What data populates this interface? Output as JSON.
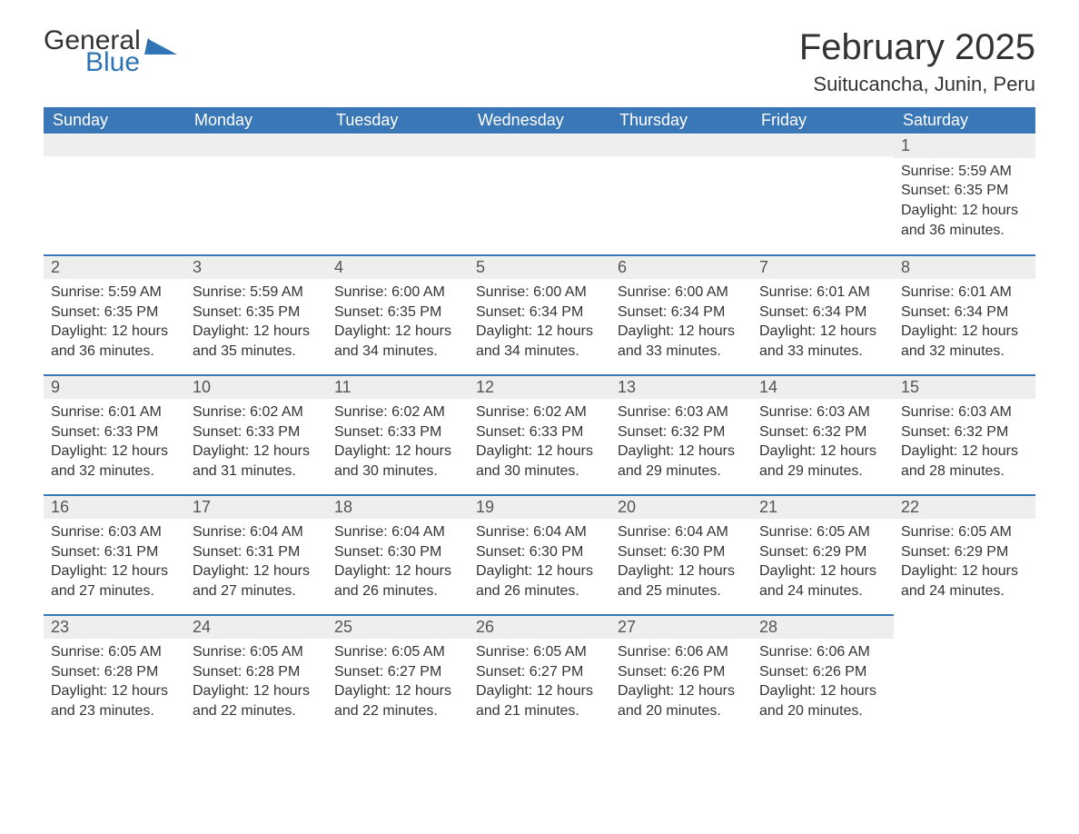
{
  "brand": {
    "word1": "General",
    "word2": "Blue",
    "word1_color": "#333333",
    "word2_color": "#2f74b5",
    "icon_color": "#2f74b5"
  },
  "header": {
    "title": "February 2025",
    "location": "Suitucancha, Junin, Peru"
  },
  "calendar": {
    "columns": [
      "Sunday",
      "Monday",
      "Tuesday",
      "Wednesday",
      "Thursday",
      "Friday",
      "Saturday"
    ],
    "header_bg": "#3a77b7",
    "header_fg": "#ffffff",
    "daynum_bg": "#eeeeee",
    "accent_border": "#3a77b7",
    "text_color": "#333333",
    "font_family": "Segoe UI",
    "day_fontsize": 18,
    "body_fontsize": 16,
    "weeks": [
      [
        null,
        null,
        null,
        null,
        null,
        null,
        {
          "n": "1",
          "sunrise": "5:59 AM",
          "sunset": "6:35 PM",
          "daylight": "12 hours and 36 minutes."
        }
      ],
      [
        {
          "n": "2",
          "sunrise": "5:59 AM",
          "sunset": "6:35 PM",
          "daylight": "12 hours and 36 minutes."
        },
        {
          "n": "3",
          "sunrise": "5:59 AM",
          "sunset": "6:35 PM",
          "daylight": "12 hours and 35 minutes."
        },
        {
          "n": "4",
          "sunrise": "6:00 AM",
          "sunset": "6:35 PM",
          "daylight": "12 hours and 34 minutes."
        },
        {
          "n": "5",
          "sunrise": "6:00 AM",
          "sunset": "6:34 PM",
          "daylight": "12 hours and 34 minutes."
        },
        {
          "n": "6",
          "sunrise": "6:00 AM",
          "sunset": "6:34 PM",
          "daylight": "12 hours and 33 minutes."
        },
        {
          "n": "7",
          "sunrise": "6:01 AM",
          "sunset": "6:34 PM",
          "daylight": "12 hours and 33 minutes."
        },
        {
          "n": "8",
          "sunrise": "6:01 AM",
          "sunset": "6:34 PM",
          "daylight": "12 hours and 32 minutes."
        }
      ],
      [
        {
          "n": "9",
          "sunrise": "6:01 AM",
          "sunset": "6:33 PM",
          "daylight": "12 hours and 32 minutes."
        },
        {
          "n": "10",
          "sunrise": "6:02 AM",
          "sunset": "6:33 PM",
          "daylight": "12 hours and 31 minutes."
        },
        {
          "n": "11",
          "sunrise": "6:02 AM",
          "sunset": "6:33 PM",
          "daylight": "12 hours and 30 minutes."
        },
        {
          "n": "12",
          "sunrise": "6:02 AM",
          "sunset": "6:33 PM",
          "daylight": "12 hours and 30 minutes."
        },
        {
          "n": "13",
          "sunrise": "6:03 AM",
          "sunset": "6:32 PM",
          "daylight": "12 hours and 29 minutes."
        },
        {
          "n": "14",
          "sunrise": "6:03 AM",
          "sunset": "6:32 PM",
          "daylight": "12 hours and 29 minutes."
        },
        {
          "n": "15",
          "sunrise": "6:03 AM",
          "sunset": "6:32 PM",
          "daylight": "12 hours and 28 minutes."
        }
      ],
      [
        {
          "n": "16",
          "sunrise": "6:03 AM",
          "sunset": "6:31 PM",
          "daylight": "12 hours and 27 minutes."
        },
        {
          "n": "17",
          "sunrise": "6:04 AM",
          "sunset": "6:31 PM",
          "daylight": "12 hours and 27 minutes."
        },
        {
          "n": "18",
          "sunrise": "6:04 AM",
          "sunset": "6:30 PM",
          "daylight": "12 hours and 26 minutes."
        },
        {
          "n": "19",
          "sunrise": "6:04 AM",
          "sunset": "6:30 PM",
          "daylight": "12 hours and 26 minutes."
        },
        {
          "n": "20",
          "sunrise": "6:04 AM",
          "sunset": "6:30 PM",
          "daylight": "12 hours and 25 minutes."
        },
        {
          "n": "21",
          "sunrise": "6:05 AM",
          "sunset": "6:29 PM",
          "daylight": "12 hours and 24 minutes."
        },
        {
          "n": "22",
          "sunrise": "6:05 AM",
          "sunset": "6:29 PM",
          "daylight": "12 hours and 24 minutes."
        }
      ],
      [
        {
          "n": "23",
          "sunrise": "6:05 AM",
          "sunset": "6:28 PM",
          "daylight": "12 hours and 23 minutes."
        },
        {
          "n": "24",
          "sunrise": "6:05 AM",
          "sunset": "6:28 PM",
          "daylight": "12 hours and 22 minutes."
        },
        {
          "n": "25",
          "sunrise": "6:05 AM",
          "sunset": "6:27 PM",
          "daylight": "12 hours and 22 minutes."
        },
        {
          "n": "26",
          "sunrise": "6:05 AM",
          "sunset": "6:27 PM",
          "daylight": "12 hours and 21 minutes."
        },
        {
          "n": "27",
          "sunrise": "6:06 AM",
          "sunset": "6:26 PM",
          "daylight": "12 hours and 20 minutes."
        },
        {
          "n": "28",
          "sunrise": "6:06 AM",
          "sunset": "6:26 PM",
          "daylight": "12 hours and 20 minutes."
        },
        null
      ]
    ],
    "labels": {
      "sunrise": "Sunrise: ",
      "sunset": "Sunset: ",
      "daylight": "Daylight: "
    }
  }
}
